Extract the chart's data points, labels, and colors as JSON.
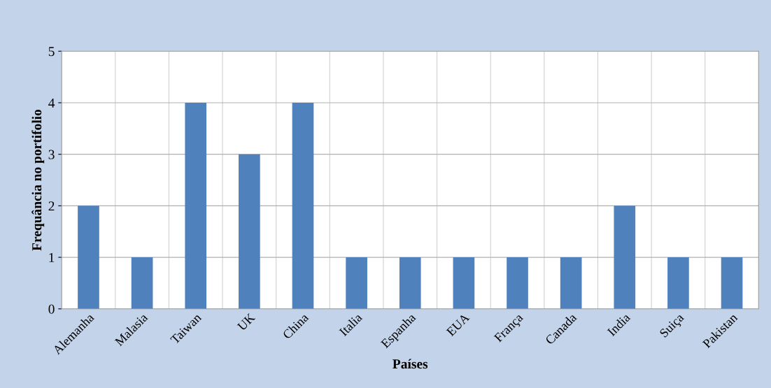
{
  "chart_data": {
    "type": "bar",
    "xlabel": "Países",
    "ylabel": "Frequância no portifolio",
    "categories": [
      "Alemanha",
      "Malasia",
      "Taiwan",
      "UK",
      "China",
      "Italia",
      "Espanha",
      "EUA",
      "França",
      "Canada",
      "India",
      "Suiça",
      "Pakistan"
    ],
    "values": [
      2,
      1,
      4,
      3,
      4,
      1,
      1,
      1,
      1,
      1,
      2,
      1,
      1
    ],
    "color": "#4f81bd",
    "ylim": [
      0,
      5
    ],
    "yticks": [
      0,
      1,
      2,
      3,
      4,
      5
    ],
    "grid": true
  }
}
